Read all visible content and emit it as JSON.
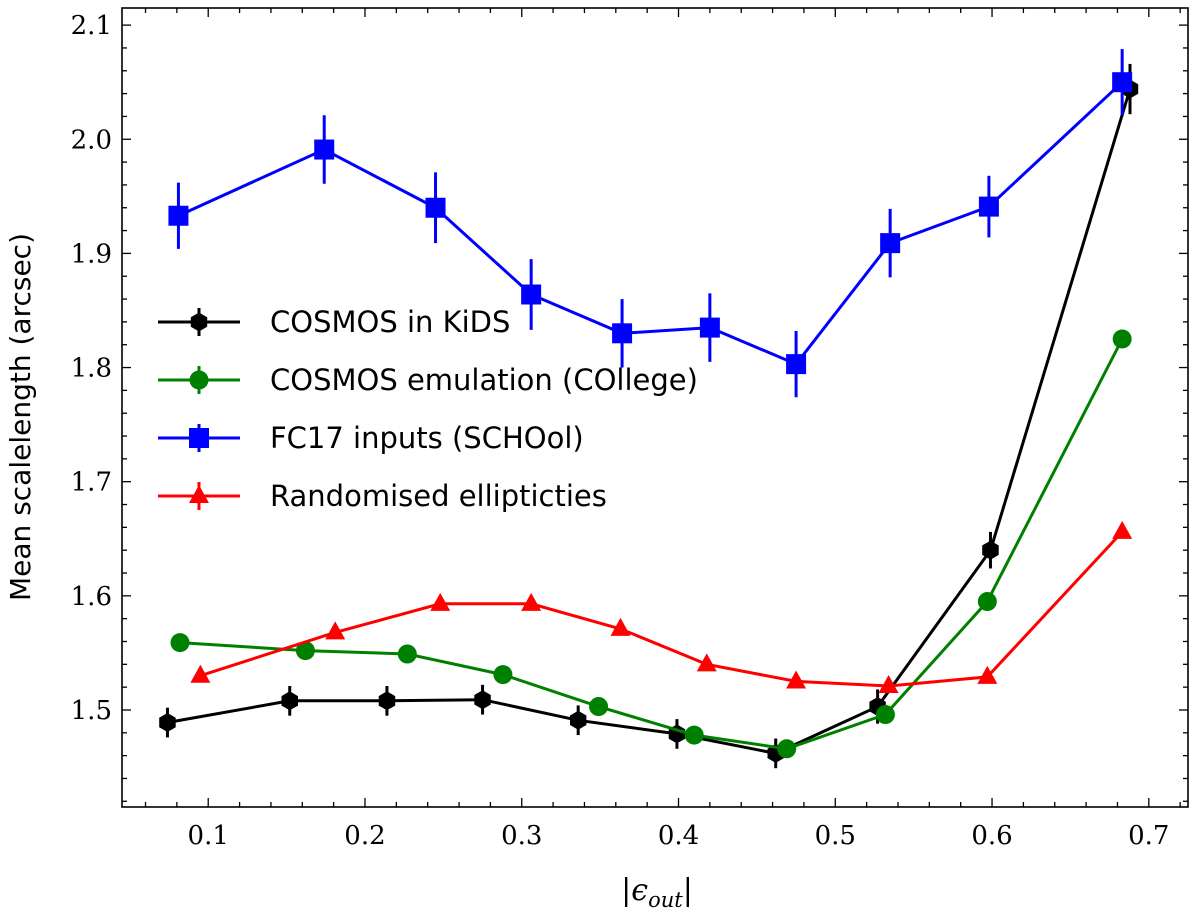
{
  "chart_data": {
    "type": "line",
    "title": "",
    "xlabel": "|ε_out|",
    "ylabel": "Mean scalelength (arcsec)",
    "xlim": [
      0.045,
      0.725
    ],
    "ylim": [
      1.415,
      2.115
    ],
    "xticks": [
      0.1,
      0.2,
      0.3,
      0.4,
      0.5,
      0.6,
      0.7
    ],
    "xtick_labels": [
      "0.1",
      "0.2",
      "0.3",
      "0.4",
      "0.5",
      "0.6",
      "0.7"
    ],
    "yticks": [
      1.5,
      1.6,
      1.7,
      1.8,
      1.9,
      2.0,
      2.1
    ],
    "ytick_labels": [
      "1.5",
      "1.6",
      "1.7",
      "1.8",
      "1.9",
      "2.0",
      "2.1"
    ],
    "grid": false,
    "legend_position": "center-left",
    "series": [
      {
        "name": "COSMOS in KiDS",
        "color": "#000000",
        "marker": "hexagon",
        "x": [
          0.074,
          0.152,
          0.214,
          0.275,
          0.336,
          0.399,
          0.462,
          0.527,
          0.599,
          0.688
        ],
        "y": [
          1.489,
          1.508,
          1.508,
          1.509,
          1.491,
          1.479,
          1.462,
          1.503,
          1.64,
          2.044
        ],
        "yerr": [
          0.013,
          0.013,
          0.013,
          0.013,
          0.013,
          0.013,
          0.013,
          0.015,
          0.016,
          0.022
        ]
      },
      {
        "name": "COSMOS emulation (COllege)",
        "color": "#008000",
        "marker": "circle",
        "x": [
          0.082,
          0.162,
          0.227,
          0.288,
          0.349,
          0.41,
          0.469,
          0.532,
          0.597,
          0.683
        ],
        "y": [
          1.559,
          1.552,
          1.549,
          1.531,
          1.503,
          1.478,
          1.466,
          1.496,
          1.595,
          1.825
        ],
        "yerr": [
          0,
          0,
          0,
          0,
          0,
          0,
          0,
          0,
          0,
          0
        ]
      },
      {
        "name": "FC17 inputs (SCHOol)",
        "color": "#0000ff",
        "marker": "square",
        "x": [
          0.081,
          0.174,
          0.245,
          0.306,
          0.364,
          0.42,
          0.475,
          0.535,
          0.598,
          0.683
        ],
        "y": [
          1.933,
          1.991,
          1.94,
          1.864,
          1.83,
          1.835,
          1.803,
          1.909,
          1.941,
          2.05
        ],
        "yerr": [
          0.029,
          0.03,
          0.031,
          0.031,
          0.03,
          0.03,
          0.029,
          0.03,
          0.027,
          0.029
        ]
      },
      {
        "name": "Randomised ellipticties",
        "color": "#ff0000",
        "marker": "triangle",
        "x": [
          0.095,
          0.181,
          0.248,
          0.306,
          0.363,
          0.418,
          0.475,
          0.534,
          0.597,
          0.683
        ],
        "y": [
          1.53,
          1.568,
          1.593,
          1.593,
          1.571,
          1.54,
          1.525,
          1.521,
          1.529,
          1.656
        ],
        "yerr": [
          0,
          0,
          0,
          0,
          0,
          0,
          0,
          0,
          0,
          0
        ]
      }
    ]
  }
}
